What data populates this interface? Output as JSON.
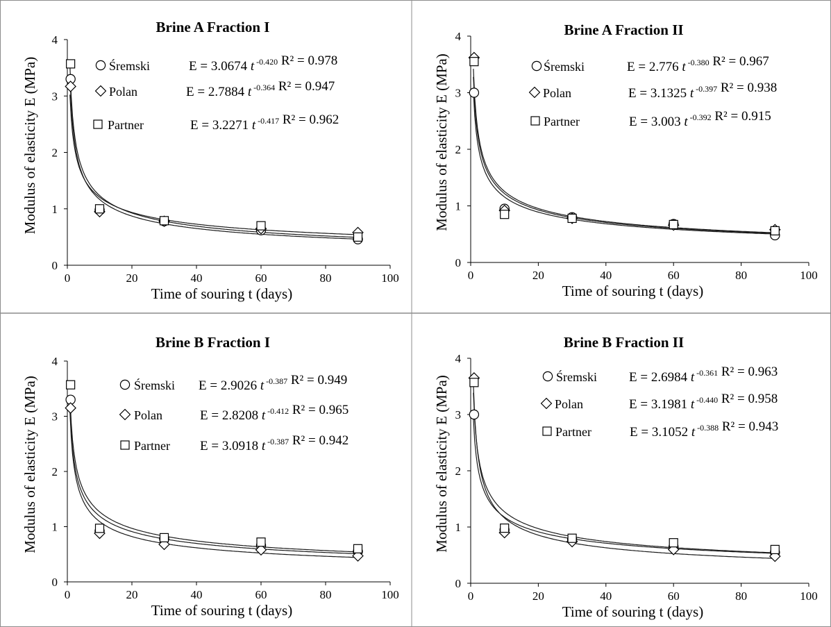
{
  "chart_data": [
    {
      "type": "scatter",
      "title": "Brine A Fraction I",
      "xlabel": "Time of souring t (days)",
      "ylabel": "Modulus of elasticity E (MPa)",
      "xlim": [
        0,
        100
      ],
      "ylim": [
        0,
        4
      ],
      "xticks": [
        "0",
        "20",
        "40",
        "60",
        "80",
        "100"
      ],
      "yticks": [
        "0",
        "1",
        "2",
        "3",
        "4"
      ],
      "grid": false,
      "series": [
        {
          "name": "Śremski",
          "marker": "circle",
          "x": [
            1,
            10,
            30,
            60,
            90
          ],
          "y": [
            3.3,
            0.98,
            0.78,
            0.62,
            0.46
          ],
          "fit": {
            "a": 3.0674,
            "b": -0.42
          },
          "eq_coef": "E = 3.0674",
          "eq_var": "t",
          "eq_exp": "-0.420",
          "r2": "R² = 0.978"
        },
        {
          "name": "Polan",
          "marker": "diamond",
          "x": [
            1,
            10,
            30,
            60,
            90
          ],
          "y": [
            3.17,
            0.95,
            0.78,
            0.65,
            0.58
          ],
          "fit": {
            "a": 2.7884,
            "b": -0.364
          },
          "eq_coef": "E = 2.7884",
          "eq_var": "t",
          "eq_exp": "-0.364",
          "r2": "R² = 0.947"
        },
        {
          "name": "Partner",
          "marker": "square",
          "x": [
            1,
            10,
            30,
            60,
            90
          ],
          "y": [
            3.57,
            1.0,
            0.79,
            0.7,
            0.5
          ],
          "fit": {
            "a": 3.2271,
            "b": -0.417
          },
          "eq_coef": "E = 3.2271",
          "eq_var": "t",
          "eq_exp": "-0.417",
          "r2": "R² = 0.962"
        }
      ]
    },
    {
      "type": "scatter",
      "title": "Brine A Fraction II",
      "xlabel": "Time of souring t (days)",
      "ylabel": "Modulus of elasticity E (MPa)",
      "xlim": [
        0,
        100
      ],
      "ylim": [
        0,
        4
      ],
      "xticks": [
        "0",
        "20",
        "40",
        "60",
        "80",
        "100"
      ],
      "yticks": [
        "0",
        "1",
        "2",
        "3",
        "4"
      ],
      "grid": false,
      "series": [
        {
          "name": "Śremski",
          "marker": "circle",
          "x": [
            1,
            10,
            30,
            60,
            90
          ],
          "y": [
            3.0,
            0.95,
            0.8,
            0.68,
            0.48
          ],
          "fit": {
            "a": 2.776,
            "b": -0.38
          },
          "eq_coef": "E = 2.776",
          "eq_var": "t",
          "eq_exp": "-0.380",
          "r2": "R² = 0.967"
        },
        {
          "name": "Polan",
          "marker": "diamond",
          "x": [
            1,
            10,
            30,
            60,
            90
          ],
          "y": [
            3.62,
            0.92,
            0.78,
            0.66,
            0.58
          ],
          "fit": {
            "a": 3.1325,
            "b": -0.397
          },
          "eq_coef": "E = 3.1325",
          "eq_var": "t",
          "eq_exp": "-0.397",
          "r2": "R² = 0.938"
        },
        {
          "name": "Partner",
          "marker": "square",
          "x": [
            1,
            10,
            30,
            60,
            90
          ],
          "y": [
            3.55,
            0.85,
            0.78,
            0.67,
            0.56
          ],
          "fit": {
            "a": 3.003,
            "b": -0.392
          },
          "eq_coef": "E = 3.003",
          "eq_var": "t",
          "eq_exp": "-0.392",
          "r2": "R² = 0.915"
        }
      ]
    },
    {
      "type": "scatter",
      "title": "Brine B Fraction I",
      "xlabel": "Time of souring t (days)",
      "ylabel": "Modulus of elasticity E (MPa)",
      "xlim": [
        0,
        100
      ],
      "ylim": [
        0,
        4
      ],
      "xticks": [
        "0",
        "20",
        "40",
        "60",
        "80",
        "100"
      ],
      "yticks": [
        "0",
        "1",
        "2",
        "3",
        "4"
      ],
      "grid": false,
      "series": [
        {
          "name": "Śremski",
          "marker": "circle",
          "x": [
            1,
            10,
            30,
            60,
            90
          ],
          "y": [
            3.3,
            0.92,
            0.78,
            0.66,
            0.55
          ],
          "fit": {
            "a": 2.9026,
            "b": -0.387
          },
          "eq_coef": "E = 2.9026",
          "eq_var": "t",
          "eq_exp": "-0.387",
          "r2": "R² = 0.949"
        },
        {
          "name": "Polan",
          "marker": "diamond",
          "x": [
            1,
            10,
            30,
            60,
            90
          ],
          "y": [
            3.15,
            0.88,
            0.68,
            0.58,
            0.47
          ],
          "fit": {
            "a": 2.8208,
            "b": -0.412
          },
          "eq_coef": "E = 2.8208",
          "eq_var": "t",
          "eq_exp": "-0.412",
          "r2": "R² = 0.965"
        },
        {
          "name": "Partner",
          "marker": "square",
          "x": [
            1,
            10,
            30,
            60,
            90
          ],
          "y": [
            3.57,
            0.97,
            0.8,
            0.72,
            0.6
          ],
          "fit": {
            "a": 3.0918,
            "b": -0.387
          },
          "eq_coef": "E = 3.0918",
          "eq_var": "t",
          "eq_exp": "-0.387",
          "r2": "R² = 0.942"
        }
      ]
    },
    {
      "type": "scatter",
      "title": "Brine B Fraction II",
      "xlabel": "Time of souring t (days)",
      "ylabel": "Modulus of elasticity E (MPa)",
      "xlim": [
        0,
        100
      ],
      "ylim": [
        0,
        4
      ],
      "xticks": [
        "0",
        "20",
        "40",
        "60",
        "80",
        "100"
      ],
      "yticks": [
        "0",
        "1",
        "2",
        "3",
        "4"
      ],
      "grid": false,
      "series": [
        {
          "name": "Śremski",
          "marker": "circle",
          "x": [
            1,
            10,
            30,
            60,
            90
          ],
          "y": [
            3.0,
            0.95,
            0.78,
            0.65,
            0.55
          ],
          "fit": {
            "a": 2.6984,
            "b": -0.361
          },
          "eq_coef": "E = 2.6984",
          "eq_var": "t",
          "eq_exp": "-0.361",
          "r2": "R² = 0.963"
        },
        {
          "name": "Polan",
          "marker": "diamond",
          "x": [
            1,
            10,
            30,
            60,
            90
          ],
          "y": [
            3.65,
            0.9,
            0.74,
            0.6,
            0.48
          ],
          "fit": {
            "a": 3.1981,
            "b": -0.44
          },
          "eq_coef": "E = 3.1981",
          "eq_var": "t",
          "eq_exp": "-0.440",
          "r2": "R² = 0.958"
        },
        {
          "name": "Partner",
          "marker": "square",
          "x": [
            1,
            10,
            30,
            60,
            90
          ],
          "y": [
            3.57,
            0.98,
            0.8,
            0.72,
            0.6
          ],
          "fit": {
            "a": 3.1052,
            "b": -0.388
          },
          "eq_coef": "E = 3.1052",
          "eq_var": "t",
          "eq_exp": "-0.388",
          "r2": "R² = 0.943"
        }
      ]
    }
  ]
}
